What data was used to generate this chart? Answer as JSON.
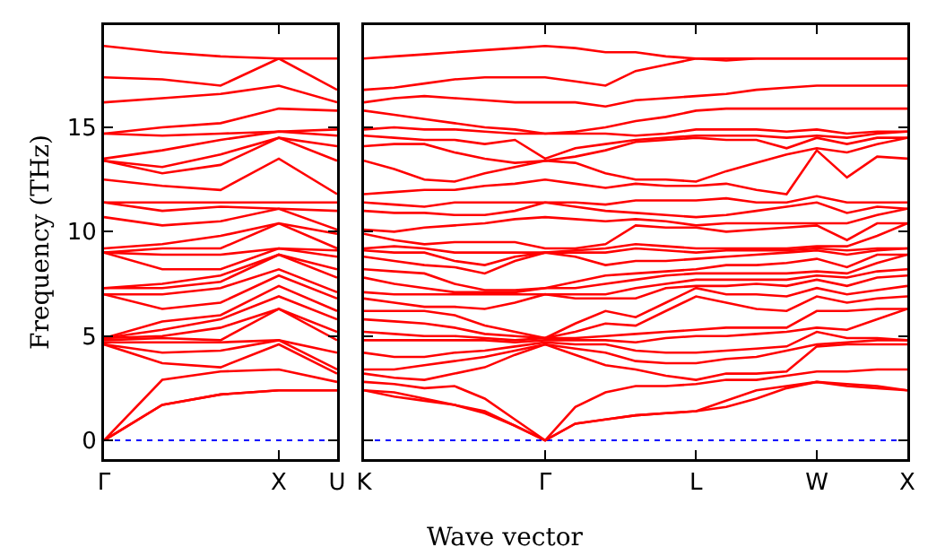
{
  "chart_data": [
    {
      "type": "line",
      "ylabel": "Frequency (THz)",
      "categories": [
        "Γ",
        null,
        null,
        "X",
        "U"
      ],
      "ylim": [
        -0.9,
        19.9
      ],
      "yticks": [
        0,
        5,
        10,
        15
      ],
      "marker": "none",
      "line_style": "solid",
      "ref_lines": [
        {
          "axis": "y",
          "value": 0,
          "color": "#0000ff",
          "line_style": "dotted"
        }
      ],
      "series": [
        {
          "color": "#ff0000",
          "values": [
            0,
            1.7,
            2.2,
            2.4,
            2.4
          ]
        },
        {
          "color": "#ff0000",
          "values": [
            0,
            1.7,
            2.2,
            2.4,
            2.4
          ]
        },
        {
          "color": "#ff0000",
          "values": [
            0,
            2.9,
            3.3,
            3.4,
            2.8
          ]
        },
        {
          "color": "#ff0000",
          "values": [
            4.6,
            3.7,
            3.5,
            4.6,
            3.2
          ]
        },
        {
          "color": "#ff0000",
          "values": [
            4.6,
            4.2,
            4.3,
            4.8,
            3.4
          ]
        },
        {
          "color": "#ff0000",
          "values": [
            4.7,
            4.7,
            4.7,
            4.8,
            4.2
          ]
        },
        {
          "color": "#ff0000",
          "values": [
            4.8,
            4.9,
            4.8,
            6.3,
            4.8
          ]
        },
        {
          "color": "#ff0000",
          "values": [
            4.9,
            5.0,
            5.4,
            6.3,
            5.2
          ]
        },
        {
          "color": "#ff0000",
          "values": [
            4.9,
            5.3,
            5.8,
            6.9,
            5.8
          ]
        },
        {
          "color": "#ff0000",
          "values": [
            4.9,
            5.7,
            6.0,
            7.4,
            6.2
          ]
        },
        {
          "color": "#ff0000",
          "values": [
            7.0,
            6.3,
            6.6,
            7.9,
            6.8
          ]
        },
        {
          "color": "#ff0000",
          "values": [
            7.0,
            7.0,
            7.3,
            8.2,
            7.1
          ]
        },
        {
          "color": "#ff0000",
          "values": [
            7.3,
            7.3,
            7.6,
            8.9,
            7.8
          ]
        },
        {
          "color": "#ff0000",
          "values": [
            7.3,
            7.5,
            7.9,
            8.9,
            8.2
          ]
        },
        {
          "color": "#ff0000",
          "values": [
            9.0,
            8.2,
            8.2,
            9.2,
            8.8
          ]
        },
        {
          "color": "#ff0000",
          "values": [
            9.0,
            8.9,
            8.9,
            9.2,
            9.1
          ]
        },
        {
          "color": "#ff0000",
          "values": [
            9.0,
            9.2,
            9.2,
            10.4,
            9.2
          ]
        },
        {
          "color": "#ff0000",
          "values": [
            9.2,
            9.4,
            9.8,
            10.4,
            9.9
          ]
        },
        {
          "color": "#ff0000",
          "values": [
            10.7,
            10.3,
            10.5,
            11.1,
            10.1
          ]
        },
        {
          "color": "#ff0000",
          "values": [
            11.4,
            11.0,
            11.2,
            11.1,
            11.0
          ]
        },
        {
          "color": "#ff0000",
          "values": [
            11.4,
            11.4,
            11.4,
            11.4,
            11.4
          ]
        },
        {
          "color": "#ff0000",
          "values": [
            12.5,
            12.2,
            12.0,
            13.5,
            11.8
          ]
        },
        {
          "color": "#ff0000",
          "values": [
            13.4,
            12.8,
            13.2,
            14.5,
            13.4
          ]
        },
        {
          "color": "#ff0000",
          "values": [
            13.4,
            13.1,
            13.7,
            14.5,
            14.1
          ]
        },
        {
          "color": "#ff0000",
          "values": [
            13.5,
            13.9,
            14.4,
            14.8,
            14.6
          ]
        },
        {
          "color": "#ff0000",
          "values": [
            14.7,
            14.6,
            14.7,
            14.8,
            14.9
          ]
        },
        {
          "color": "#ff0000",
          "values": [
            14.7,
            15.0,
            15.2,
            15.9,
            15.8
          ]
        },
        {
          "color": "#ff0000",
          "values": [
            16.2,
            16.4,
            16.6,
            17.0,
            16.2
          ]
        },
        {
          "color": "#ff0000",
          "values": [
            17.4,
            17.3,
            17.0,
            18.3,
            16.8
          ]
        },
        {
          "color": "#ff0000",
          "values": [
            18.9,
            18.6,
            18.4,
            18.3,
            18.3
          ]
        }
      ]
    },
    {
      "type": "line",
      "xlabel": "Wave vector",
      "categories": [
        "K",
        null,
        null,
        null,
        null,
        null,
        "Γ",
        null,
        null,
        null,
        null,
        "L",
        null,
        null,
        null,
        "W",
        null,
        null,
        "X"
      ],
      "ylim": [
        -0.9,
        19.9
      ],
      "yticks": [
        0,
        5,
        10,
        15
      ],
      "tick_labels": "x",
      "marker": "none",
      "line_style": "solid",
      "ref_lines": [
        {
          "axis": "y",
          "value": 0,
          "color": "#0000ff",
          "line_style": "dotted"
        }
      ],
      "series": [
        {
          "color": "#ff0000",
          "values": [
            2.4,
            2.1,
            1.9,
            1.7,
            1.3,
            0.7,
            0,
            0.8,
            1.0,
            1.2,
            1.3,
            1.4,
            1.6,
            2.0,
            2.5,
            2.8,
            2.6,
            2.5,
            2.4
          ]
        },
        {
          "color": "#ff0000",
          "values": [
            2.4,
            2.3,
            2.0,
            1.7,
            1.4,
            0.7,
            0,
            0.8,
            1.0,
            1.2,
            1.3,
            1.4,
            1.9,
            2.4,
            2.6,
            2.8,
            2.7,
            2.6,
            2.4
          ]
        },
        {
          "color": "#ff0000",
          "values": [
            2.8,
            2.7,
            2.5,
            2.6,
            2.0,
            1.0,
            0,
            1.6,
            2.3,
            2.6,
            2.6,
            2.7,
            2.9,
            2.9,
            3.1,
            3.3,
            3.3,
            3.4,
            3.4
          ]
        },
        {
          "color": "#ff0000",
          "values": [
            3.2,
            3.0,
            2.9,
            3.2,
            3.5,
            4.1,
            4.6,
            4.1,
            3.6,
            3.4,
            3.1,
            2.9,
            3.2,
            3.2,
            3.3,
            4.5,
            4.6,
            4.6,
            4.6
          ]
        },
        {
          "color": "#ff0000",
          "values": [
            3.4,
            3.4,
            3.6,
            3.8,
            4.0,
            4.3,
            4.6,
            4.4,
            4.2,
            3.8,
            3.7,
            3.7,
            3.9,
            4.0,
            4.3,
            4.6,
            4.7,
            4.8,
            4.8
          ]
        },
        {
          "color": "#ff0000",
          "values": [
            4.2,
            4.0,
            4.0,
            4.2,
            4.3,
            4.5,
            4.7,
            4.6,
            4.6,
            4.3,
            4.2,
            4.2,
            4.3,
            4.4,
            4.5,
            5.2,
            4.9,
            4.9,
            4.8
          ]
        },
        {
          "color": "#ff0000",
          "values": [
            4.8,
            4.8,
            4.8,
            4.8,
            4.8,
            4.7,
            4.8,
            4.8,
            4.8,
            4.7,
            4.9,
            5.0,
            5.0,
            5.1,
            5.2,
            5.4,
            5.3,
            5.8,
            6.3
          ]
        },
        {
          "color": "#ff0000",
          "values": [
            5.2,
            5.1,
            5.0,
            5.0,
            4.9,
            4.8,
            4.9,
            4.9,
            5.0,
            5.1,
            5.2,
            5.3,
            5.4,
            5.4,
            5.4,
            6.2,
            6.2,
            6.3,
            6.3
          ]
        },
        {
          "color": "#ff0000",
          "values": [
            5.8,
            5.7,
            5.6,
            5.4,
            5.1,
            5.0,
            4.9,
            5.2,
            5.6,
            5.5,
            6.2,
            6.9,
            6.6,
            6.3,
            6.2,
            6.9,
            6.6,
            6.8,
            6.9
          ]
        },
        {
          "color": "#ff0000",
          "values": [
            6.2,
            6.2,
            6.2,
            6.0,
            5.5,
            5.2,
            4.9,
            5.6,
            6.2,
            5.9,
            6.6,
            7.3,
            7.0,
            7.0,
            6.9,
            7.3,
            7.0,
            7.2,
            7.4
          ]
        },
        {
          "color": "#ff0000",
          "values": [
            6.8,
            6.6,
            6.4,
            6.4,
            6.3,
            6.6,
            7.0,
            6.8,
            6.8,
            6.8,
            7.3,
            7.4,
            7.4,
            7.5,
            7.4,
            7.7,
            7.4,
            7.8,
            7.9
          ]
        },
        {
          "color": "#ff0000",
          "values": [
            7.1,
            7.0,
            7.0,
            7.0,
            7.0,
            7.0,
            7.0,
            7.0,
            7.0,
            7.3,
            7.5,
            7.7,
            7.7,
            7.7,
            7.7,
            7.9,
            7.8,
            8.1,
            8.2
          ]
        },
        {
          "color": "#ff0000",
          "values": [
            7.8,
            7.5,
            7.3,
            7.1,
            7.1,
            7.1,
            7.3,
            7.3,
            7.5,
            7.7,
            7.9,
            8.0,
            8.0,
            8.0,
            8.0,
            8.1,
            8.0,
            8.5,
            8.9
          ]
        },
        {
          "color": "#ff0000",
          "values": [
            8.2,
            8.1,
            8.0,
            7.5,
            7.2,
            7.2,
            7.3,
            7.6,
            7.9,
            8.0,
            8.1,
            8.2,
            8.4,
            8.4,
            8.5,
            8.7,
            8.3,
            8.9,
            8.9
          ]
        },
        {
          "color": "#ff0000",
          "values": [
            8.8,
            8.6,
            8.4,
            8.3,
            8.0,
            8.6,
            9.0,
            8.8,
            8.4,
            8.6,
            8.6,
            8.7,
            8.8,
            8.9,
            9.0,
            9.1,
            8.9,
            9.1,
            9.2
          ]
        },
        {
          "color": "#ff0000",
          "values": [
            9.1,
            9.0,
            9.0,
            8.6,
            8.4,
            8.8,
            9.0,
            9.0,
            9.0,
            9.2,
            9.1,
            9.0,
            9.1,
            9.1,
            9.1,
            9.2,
            9.1,
            9.2,
            9.2
          ]
        },
        {
          "color": "#ff0000",
          "values": [
            9.2,
            9.3,
            9.2,
            9.0,
            9.0,
            9.0,
            9.0,
            9.1,
            9.2,
            9.4,
            9.3,
            9.2,
            9.2,
            9.2,
            9.2,
            9.3,
            9.3,
            9.8,
            10.4
          ]
        },
        {
          "color": "#ff0000",
          "values": [
            9.9,
            9.6,
            9.4,
            9.5,
            9.5,
            9.5,
            9.2,
            9.2,
            9.4,
            10.3,
            10.2,
            10.2,
            10.0,
            10.1,
            10.2,
            10.3,
            9.6,
            10.4,
            10.4
          ]
        },
        {
          "color": "#ff0000",
          "values": [
            10.1,
            10.0,
            10.2,
            10.3,
            10.4,
            10.6,
            10.7,
            10.6,
            10.5,
            10.6,
            10.5,
            10.3,
            10.4,
            10.4,
            10.4,
            10.4,
            10.4,
            10.8,
            11.1
          ]
        },
        {
          "color": "#ff0000",
          "values": [
            11.0,
            10.9,
            10.9,
            10.8,
            10.8,
            11.0,
            11.4,
            11.2,
            11.0,
            10.9,
            10.8,
            10.7,
            10.8,
            11.0,
            11.2,
            11.4,
            10.9,
            11.2,
            11.1
          ]
        },
        {
          "color": "#ff0000",
          "values": [
            11.4,
            11.3,
            11.2,
            11.4,
            11.4,
            11.4,
            11.4,
            11.4,
            11.3,
            11.5,
            11.5,
            11.5,
            11.6,
            11.4,
            11.4,
            11.7,
            11.4,
            11.4,
            11.4
          ]
        },
        {
          "color": "#ff0000",
          "values": [
            11.8,
            11.9,
            12.0,
            12.0,
            12.2,
            12.3,
            12.5,
            12.3,
            12.1,
            12.3,
            12.2,
            12.2,
            12.3,
            12.0,
            11.8,
            13.9,
            12.6,
            13.6,
            13.5
          ]
        },
        {
          "color": "#ff0000",
          "values": [
            13.4,
            13.0,
            12.5,
            12.4,
            12.8,
            13.1,
            13.4,
            13.3,
            12.8,
            12.5,
            12.5,
            12.4,
            12.9,
            13.3,
            13.7,
            14.0,
            13.8,
            14.2,
            14.5
          ]
        },
        {
          "color": "#ff0000",
          "values": [
            14.1,
            14.2,
            14.2,
            13.8,
            13.5,
            13.3,
            13.4,
            13.6,
            13.9,
            14.3,
            14.4,
            14.5,
            14.4,
            14.4,
            14.0,
            14.5,
            14.2,
            14.5,
            14.5
          ]
        },
        {
          "color": "#ff0000",
          "values": [
            14.6,
            14.5,
            14.4,
            14.4,
            14.2,
            14.4,
            13.5,
            14.0,
            14.2,
            14.4,
            14.5,
            14.6,
            14.6,
            14.6,
            14.5,
            14.6,
            14.5,
            14.7,
            14.8
          ]
        },
        {
          "color": "#ff0000",
          "values": [
            14.9,
            15.0,
            14.9,
            14.9,
            14.8,
            14.7,
            14.7,
            14.7,
            14.7,
            14.6,
            14.7,
            14.9,
            14.9,
            14.9,
            14.8,
            14.9,
            14.7,
            14.8,
            14.8
          ]
        },
        {
          "color": "#ff0000",
          "values": [
            15.8,
            15.6,
            15.4,
            15.2,
            15.0,
            14.9,
            14.7,
            14.8,
            15.0,
            15.3,
            15.5,
            15.8,
            15.9,
            15.9,
            15.9,
            15.9,
            15.9,
            15.9,
            15.9
          ]
        },
        {
          "color": "#ff0000",
          "values": [
            16.2,
            16.4,
            16.5,
            16.4,
            16.3,
            16.2,
            16.2,
            16.2,
            16.0,
            16.3,
            16.4,
            16.5,
            16.6,
            16.8,
            16.9,
            17.0,
            17.0,
            17.0,
            17.0
          ]
        },
        {
          "color": "#ff0000",
          "values": [
            16.8,
            16.9,
            17.1,
            17.3,
            17.4,
            17.4,
            17.4,
            17.2,
            17.0,
            17.7,
            18.0,
            18.3,
            18.2,
            18.3,
            18.3,
            18.3,
            18.3,
            18.3,
            18.3
          ]
        },
        {
          "color": "#ff0000",
          "values": [
            18.3,
            18.4,
            18.5,
            18.6,
            18.7,
            18.8,
            18.9,
            18.8,
            18.6,
            18.6,
            18.4,
            18.3,
            18.3,
            18.3,
            18.3,
            18.3,
            18.3,
            18.3,
            18.3
          ]
        }
      ]
    }
  ]
}
